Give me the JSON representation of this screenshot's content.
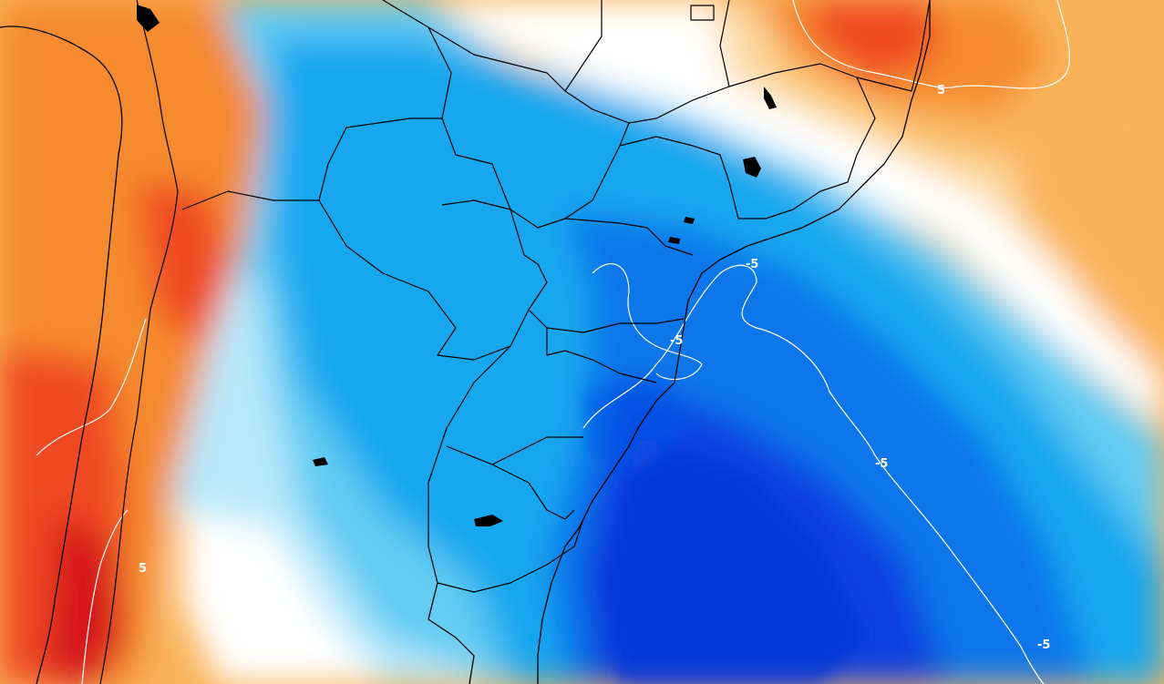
{
  "map": {
    "type": "temperature-anomaly-field",
    "colors": {
      "deep_red": "#d7191c",
      "red": "#ef4a24",
      "orange": "#f58a2e",
      "light_orange": "#f9b35a",
      "pale_orange": "#fcd9a1",
      "white": "#ffffff",
      "pale_blue": "#b8e8fb",
      "light_blue": "#62ccf2",
      "mid_blue": "#16a7ef",
      "blue": "#0c76ea",
      "deep_blue": "#0a3fe0",
      "contour_line": "#ffffff",
      "border_line": "#000000"
    },
    "contour_labels": [
      {
        "id": "label-ne",
        "text": "5"
      },
      {
        "id": "label-coast",
        "text": "-5"
      },
      {
        "id": "label-inland",
        "text": "-5"
      },
      {
        "id": "label-ocean",
        "text": "-5"
      },
      {
        "id": "label-se",
        "text": "-5"
      },
      {
        "id": "label-andes",
        "text": "5"
      }
    ]
  }
}
